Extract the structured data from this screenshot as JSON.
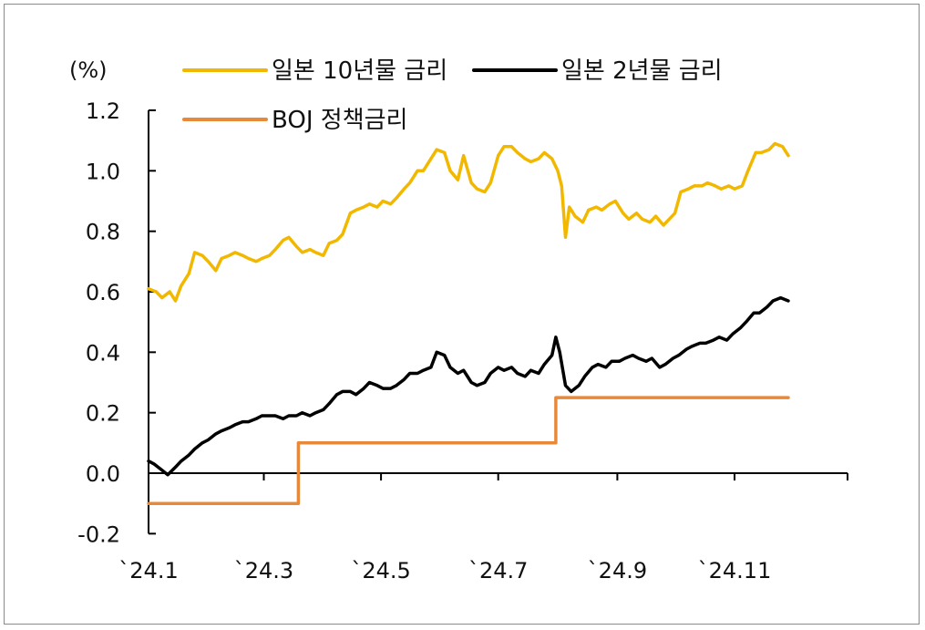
{
  "chart_data": {
    "type": "line",
    "unit_label": "(%)",
    "y_ticks": [
      "1.2",
      "1.0",
      "0.8",
      "0.6",
      "0.4",
      "0.2",
      "0.0",
      "-0.2"
    ],
    "y_tick_values": [
      1.2,
      1.0,
      0.8,
      0.6,
      0.4,
      0.2,
      0.0,
      -0.2
    ],
    "ylim": [
      -0.2,
      1.2
    ],
    "x_ticks": [
      "`24.1",
      "`24.3",
      "`24.5",
      "`24.7",
      "`24.9",
      "`24.11"
    ],
    "x_tick_values": [
      "2024-01-01",
      "2024-03-01",
      "2024-05-01",
      "2024-07-01",
      "2024-09-01",
      "2024-11-01"
    ],
    "xlim": [
      "2024-01-01",
      "2024-12-31"
    ],
    "grid": false,
    "legend_position": "top",
    "series": [
      {
        "name": "일본 10년물 금리",
        "color": "#F2B800",
        "points": [
          [
            "2024-01-01",
            0.61
          ],
          [
            "2024-01-05",
            0.6
          ],
          [
            "2024-01-08",
            0.58
          ],
          [
            "2024-01-12",
            0.6
          ],
          [
            "2024-01-15",
            0.57
          ],
          [
            "2024-01-18",
            0.62
          ],
          [
            "2024-01-22",
            0.66
          ],
          [
            "2024-01-25",
            0.73
          ],
          [
            "2024-01-29",
            0.72
          ],
          [
            "2024-02-01",
            0.7
          ],
          [
            "2024-02-05",
            0.67
          ],
          [
            "2024-02-08",
            0.71
          ],
          [
            "2024-02-12",
            0.72
          ],
          [
            "2024-02-15",
            0.73
          ],
          [
            "2024-02-19",
            0.72
          ],
          [
            "2024-02-22",
            0.71
          ],
          [
            "2024-02-26",
            0.7
          ],
          [
            "2024-02-29",
            0.71
          ],
          [
            "2024-03-04",
            0.72
          ],
          [
            "2024-03-07",
            0.74
          ],
          [
            "2024-03-11",
            0.77
          ],
          [
            "2024-03-14",
            0.78
          ],
          [
            "2024-03-18",
            0.75
          ],
          [
            "2024-03-21",
            0.73
          ],
          [
            "2024-03-25",
            0.74
          ],
          [
            "2024-03-28",
            0.73
          ],
          [
            "2024-04-01",
            0.72
          ],
          [
            "2024-04-04",
            0.76
          ],
          [
            "2024-04-08",
            0.77
          ],
          [
            "2024-04-11",
            0.79
          ],
          [
            "2024-04-15",
            0.86
          ],
          [
            "2024-04-18",
            0.87
          ],
          [
            "2024-04-22",
            0.88
          ],
          [
            "2024-04-25",
            0.89
          ],
          [
            "2024-04-29",
            0.88
          ],
          [
            "2024-05-02",
            0.9
          ],
          [
            "2024-05-06",
            0.89
          ],
          [
            "2024-05-09",
            0.91
          ],
          [
            "2024-05-13",
            0.94
          ],
          [
            "2024-05-16",
            0.96
          ],
          [
            "2024-05-20",
            1.0
          ],
          [
            "2024-05-23",
            1.0
          ],
          [
            "2024-05-27",
            1.04
          ],
          [
            "2024-05-30",
            1.07
          ],
          [
            "2024-06-03",
            1.06
          ],
          [
            "2024-06-06",
            1.0
          ],
          [
            "2024-06-10",
            0.97
          ],
          [
            "2024-06-13",
            1.05
          ],
          [
            "2024-06-17",
            0.96
          ],
          [
            "2024-06-20",
            0.94
          ],
          [
            "2024-06-24",
            0.93
          ],
          [
            "2024-06-27",
            0.96
          ],
          [
            "2024-07-01",
            1.05
          ],
          [
            "2024-07-04",
            1.08
          ],
          [
            "2024-07-08",
            1.08
          ],
          [
            "2024-07-11",
            1.06
          ],
          [
            "2024-07-15",
            1.04
          ],
          [
            "2024-07-18",
            1.03
          ],
          [
            "2024-07-22",
            1.04
          ],
          [
            "2024-07-25",
            1.06
          ],
          [
            "2024-07-29",
            1.04
          ],
          [
            "2024-08-01",
            1.0
          ],
          [
            "2024-08-03",
            0.95
          ],
          [
            "2024-08-05",
            0.78
          ],
          [
            "2024-08-07",
            0.88
          ],
          [
            "2024-08-10",
            0.85
          ],
          [
            "2024-08-14",
            0.83
          ],
          [
            "2024-08-17",
            0.87
          ],
          [
            "2024-08-21",
            0.88
          ],
          [
            "2024-08-24",
            0.87
          ],
          [
            "2024-08-28",
            0.89
          ],
          [
            "2024-08-31",
            0.9
          ],
          [
            "2024-09-04",
            0.86
          ],
          [
            "2024-09-07",
            0.84
          ],
          [
            "2024-09-11",
            0.86
          ],
          [
            "2024-09-14",
            0.84
          ],
          [
            "2024-09-18",
            0.83
          ],
          [
            "2024-09-21",
            0.85
          ],
          [
            "2024-09-25",
            0.82
          ],
          [
            "2024-09-28",
            0.84
          ],
          [
            "2024-10-01",
            0.86
          ],
          [
            "2024-10-04",
            0.93
          ],
          [
            "2024-10-08",
            0.94
          ],
          [
            "2024-10-11",
            0.95
          ],
          [
            "2024-10-15",
            0.95
          ],
          [
            "2024-10-18",
            0.96
          ],
          [
            "2024-10-22",
            0.95
          ],
          [
            "2024-10-25",
            0.94
          ],
          [
            "2024-10-29",
            0.95
          ],
          [
            "2024-11-01",
            0.94
          ],
          [
            "2024-11-05",
            0.95
          ],
          [
            "2024-11-08",
            1.0
          ],
          [
            "2024-11-12",
            1.06
          ],
          [
            "2024-11-15",
            1.06
          ],
          [
            "2024-11-19",
            1.07
          ],
          [
            "2024-11-22",
            1.09
          ],
          [
            "2024-11-26",
            1.08
          ],
          [
            "2024-11-29",
            1.05
          ]
        ]
      },
      {
        "name": "일본 2년물 금리",
        "color": "#000000",
        "points": [
          [
            "2024-01-01",
            0.04
          ],
          [
            "2024-01-04",
            0.03
          ],
          [
            "2024-01-08",
            0.01
          ],
          [
            "2024-01-11",
            -0.005
          ],
          [
            "2024-01-15",
            0.02
          ],
          [
            "2024-01-18",
            0.04
          ],
          [
            "2024-01-22",
            0.06
          ],
          [
            "2024-01-25",
            0.08
          ],
          [
            "2024-01-29",
            0.1
          ],
          [
            "2024-02-01",
            0.11
          ],
          [
            "2024-02-05",
            0.13
          ],
          [
            "2024-02-08",
            0.14
          ],
          [
            "2024-02-12",
            0.15
          ],
          [
            "2024-02-15",
            0.16
          ],
          [
            "2024-02-19",
            0.17
          ],
          [
            "2024-02-22",
            0.17
          ],
          [
            "2024-02-26",
            0.18
          ],
          [
            "2024-02-29",
            0.19
          ],
          [
            "2024-03-04",
            0.19
          ],
          [
            "2024-03-07",
            0.19
          ],
          [
            "2024-03-11",
            0.18
          ],
          [
            "2024-03-14",
            0.19
          ],
          [
            "2024-03-18",
            0.19
          ],
          [
            "2024-03-21",
            0.2
          ],
          [
            "2024-03-25",
            0.19
          ],
          [
            "2024-03-28",
            0.2
          ],
          [
            "2024-04-01",
            0.21
          ],
          [
            "2024-04-04",
            0.23
          ],
          [
            "2024-04-08",
            0.26
          ],
          [
            "2024-04-11",
            0.27
          ],
          [
            "2024-04-15",
            0.27
          ],
          [
            "2024-04-18",
            0.26
          ],
          [
            "2024-04-22",
            0.28
          ],
          [
            "2024-04-25",
            0.3
          ],
          [
            "2024-04-29",
            0.29
          ],
          [
            "2024-05-02",
            0.28
          ],
          [
            "2024-05-06",
            0.28
          ],
          [
            "2024-05-09",
            0.29
          ],
          [
            "2024-05-13",
            0.31
          ],
          [
            "2024-05-16",
            0.33
          ],
          [
            "2024-05-20",
            0.33
          ],
          [
            "2024-05-23",
            0.34
          ],
          [
            "2024-05-27",
            0.35
          ],
          [
            "2024-05-30",
            0.4
          ],
          [
            "2024-06-03",
            0.39
          ],
          [
            "2024-06-06",
            0.35
          ],
          [
            "2024-06-10",
            0.33
          ],
          [
            "2024-06-13",
            0.34
          ],
          [
            "2024-06-17",
            0.3
          ],
          [
            "2024-06-20",
            0.29
          ],
          [
            "2024-06-24",
            0.3
          ],
          [
            "2024-06-27",
            0.33
          ],
          [
            "2024-07-01",
            0.35
          ],
          [
            "2024-07-04",
            0.34
          ],
          [
            "2024-07-08",
            0.35
          ],
          [
            "2024-07-11",
            0.33
          ],
          [
            "2024-07-15",
            0.32
          ],
          [
            "2024-07-18",
            0.34
          ],
          [
            "2024-07-22",
            0.33
          ],
          [
            "2024-07-25",
            0.36
          ],
          [
            "2024-07-29",
            0.39
          ],
          [
            "2024-07-31",
            0.45
          ],
          [
            "2024-08-02",
            0.4
          ],
          [
            "2024-08-05",
            0.29
          ],
          [
            "2024-08-08",
            0.27
          ],
          [
            "2024-08-12",
            0.29
          ],
          [
            "2024-08-15",
            0.32
          ],
          [
            "2024-08-19",
            0.35
          ],
          [
            "2024-08-22",
            0.36
          ],
          [
            "2024-08-26",
            0.35
          ],
          [
            "2024-08-29",
            0.37
          ],
          [
            "2024-09-02",
            0.37
          ],
          [
            "2024-09-05",
            0.38
          ],
          [
            "2024-09-09",
            0.39
          ],
          [
            "2024-09-12",
            0.38
          ],
          [
            "2024-09-16",
            0.37
          ],
          [
            "2024-09-19",
            0.38
          ],
          [
            "2024-09-23",
            0.35
          ],
          [
            "2024-09-26",
            0.36
          ],
          [
            "2024-09-30",
            0.38
          ],
          [
            "2024-10-03",
            0.39
          ],
          [
            "2024-10-07",
            0.41
          ],
          [
            "2024-10-10",
            0.42
          ],
          [
            "2024-10-14",
            0.43
          ],
          [
            "2024-10-17",
            0.43
          ],
          [
            "2024-10-21",
            0.44
          ],
          [
            "2024-10-24",
            0.45
          ],
          [
            "2024-10-28",
            0.44
          ],
          [
            "2024-10-31",
            0.46
          ],
          [
            "2024-11-04",
            0.48
          ],
          [
            "2024-11-07",
            0.5
          ],
          [
            "2024-11-11",
            0.53
          ],
          [
            "2024-11-14",
            0.53
          ],
          [
            "2024-11-18",
            0.55
          ],
          [
            "2024-11-21",
            0.57
          ],
          [
            "2024-11-25",
            0.58
          ],
          [
            "2024-11-29",
            0.57
          ]
        ]
      },
      {
        "name": "BOJ 정책금리",
        "color": "#E8893A",
        "step": true,
        "points": [
          [
            "2024-01-01",
            -0.1
          ],
          [
            "2024-03-19",
            -0.1
          ],
          [
            "2024-03-19",
            0.1
          ],
          [
            "2024-07-31",
            0.1
          ],
          [
            "2024-07-31",
            0.25
          ],
          [
            "2024-11-29",
            0.25
          ]
        ]
      }
    ]
  }
}
